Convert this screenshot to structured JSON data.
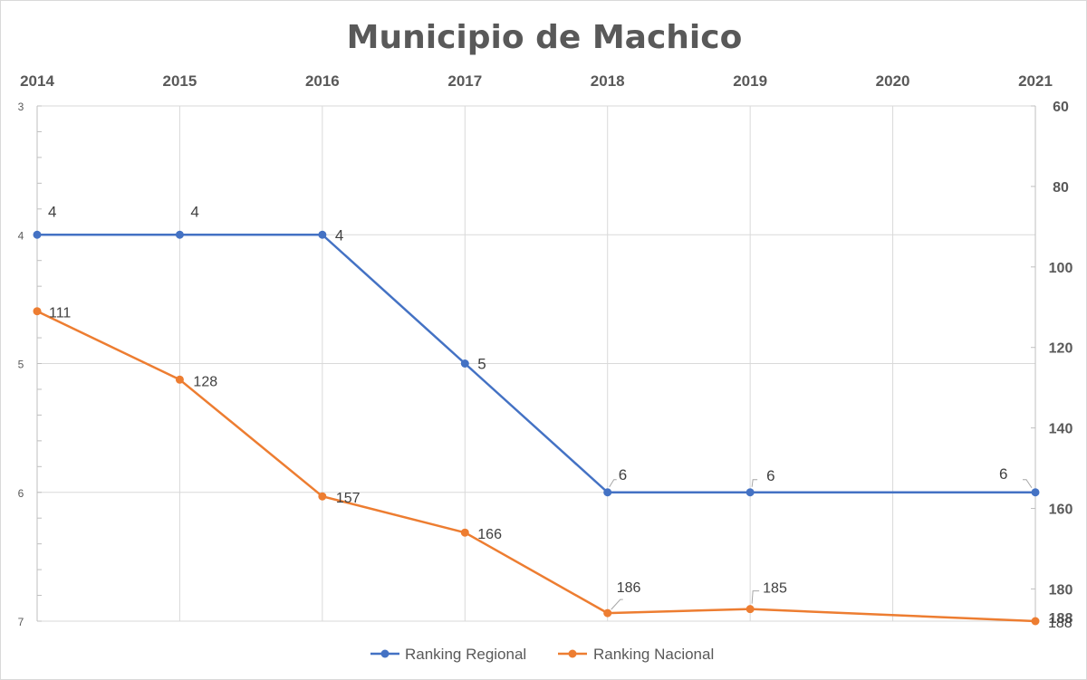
{
  "chart_data": {
    "type": "line",
    "title": "Municipio de Machico",
    "categories": [
      "2014",
      "2015",
      "2016",
      "2017",
      "2018",
      "2019",
      "2020",
      "2021"
    ],
    "y_left": {
      "min": 3,
      "max": 7,
      "reversed": true,
      "ticks": [
        "3",
        "4",
        "5",
        "6",
        "7"
      ]
    },
    "y_right": {
      "min": 60,
      "max": 188,
      "reversed": true,
      "ticks": [
        "60",
        "80",
        "100",
        "120",
        "140",
        "160",
        "180",
        "188"
      ]
    },
    "series": [
      {
        "name": "Ranking Regional",
        "axis": "left",
        "color": "#4472c4",
        "values": [
          4,
          4,
          4,
          5,
          6,
          6,
          null,
          6
        ],
        "labels": [
          "4",
          "4",
          "4",
          "5",
          "6",
          "6",
          "",
          "6"
        ]
      },
      {
        "name": "Ranking Nacional",
        "axis": "right",
        "color": "#ed7d31",
        "values": [
          111,
          128,
          157,
          166,
          186,
          185,
          null,
          188
        ],
        "labels": [
          "111",
          "128",
          "157",
          "166",
          "186",
          "185",
          "",
          "188"
        ]
      }
    ],
    "grid": true,
    "legend_position": "bottom"
  }
}
